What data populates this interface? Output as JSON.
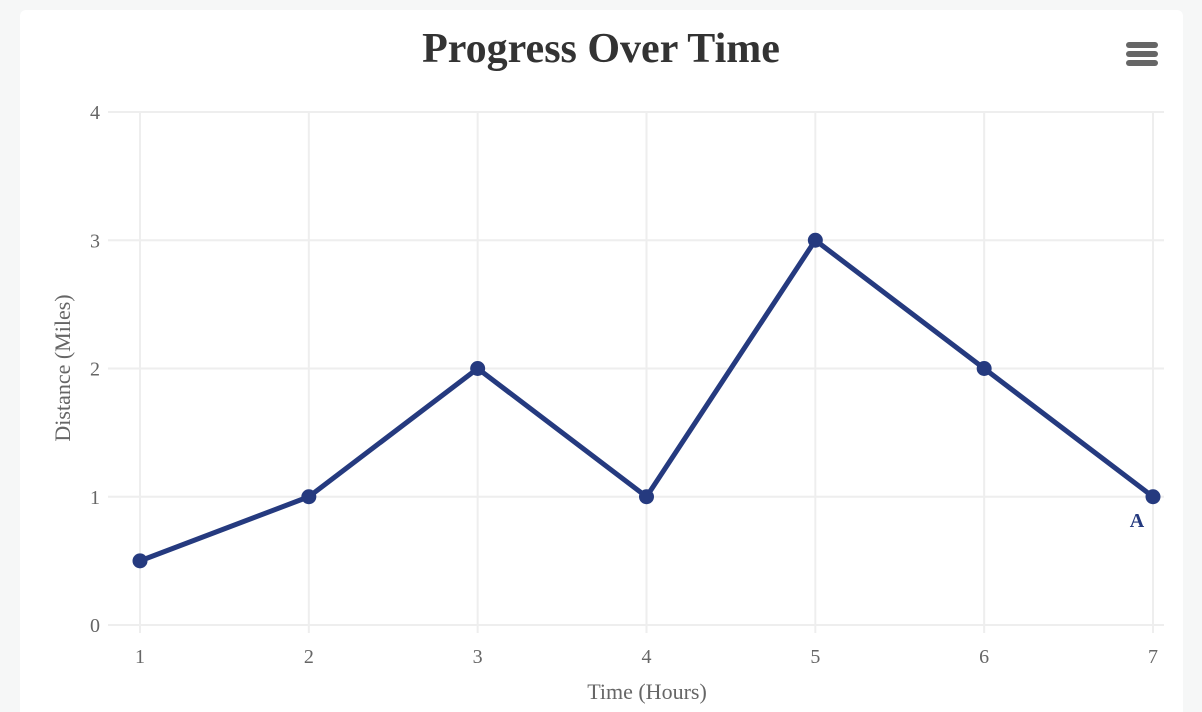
{
  "chart_data": {
    "type": "line",
    "title": "Progress Over Time",
    "xlabel": "Time (Hours)",
    "ylabel": "Distance (Miles)",
    "x": [
      1,
      2,
      3,
      4,
      5,
      6,
      7
    ],
    "xlim": [
      1,
      7
    ],
    "ylim": [
      0,
      4
    ],
    "xticks": [
      1,
      2,
      3,
      4,
      5,
      6,
      7
    ],
    "yticks": [
      0,
      1,
      2,
      3,
      4
    ],
    "grid": true,
    "series": [
      {
        "values": [
          0.5,
          1,
          2,
          1,
          3,
          2,
          1
        ],
        "color": "#253a7f"
      }
    ],
    "annotations": [
      {
        "text": "A",
        "x": 7,
        "y": 1
      }
    ]
  },
  "toolbar": {
    "menu_icon": "hamburger-menu-icon"
  },
  "colors": {
    "background": "#f6f7f7",
    "card": "#ffffff",
    "grid": "#eeeeee",
    "text": "#666666",
    "title": "#333333"
  }
}
